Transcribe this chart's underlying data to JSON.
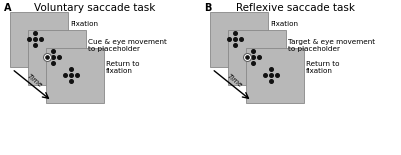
{
  "background_color": "#ffffff",
  "panel_bg": "#b8b8b8",
  "panel_edge": "#888888",
  "dot_color": "#111111",
  "panel_A_title": "Voluntary saccade task",
  "panel_B_title": "Reflexive saccade task",
  "label_A": "A",
  "label_B": "B",
  "label_fontsize": 7,
  "title_fontsize": 7.5,
  "annotation_fontsize": 5.2,
  "time_label_fontsize": 5.0,
  "panel_A_labels": [
    "Fixation",
    "Cue & eye movement\nto placeholder",
    "Return to\nfixation"
  ],
  "panel_B_labels": [
    "Fixation",
    "Target & eye movement\nto placeholder",
    "Return to\nfixation"
  ],
  "time_label": "Time"
}
